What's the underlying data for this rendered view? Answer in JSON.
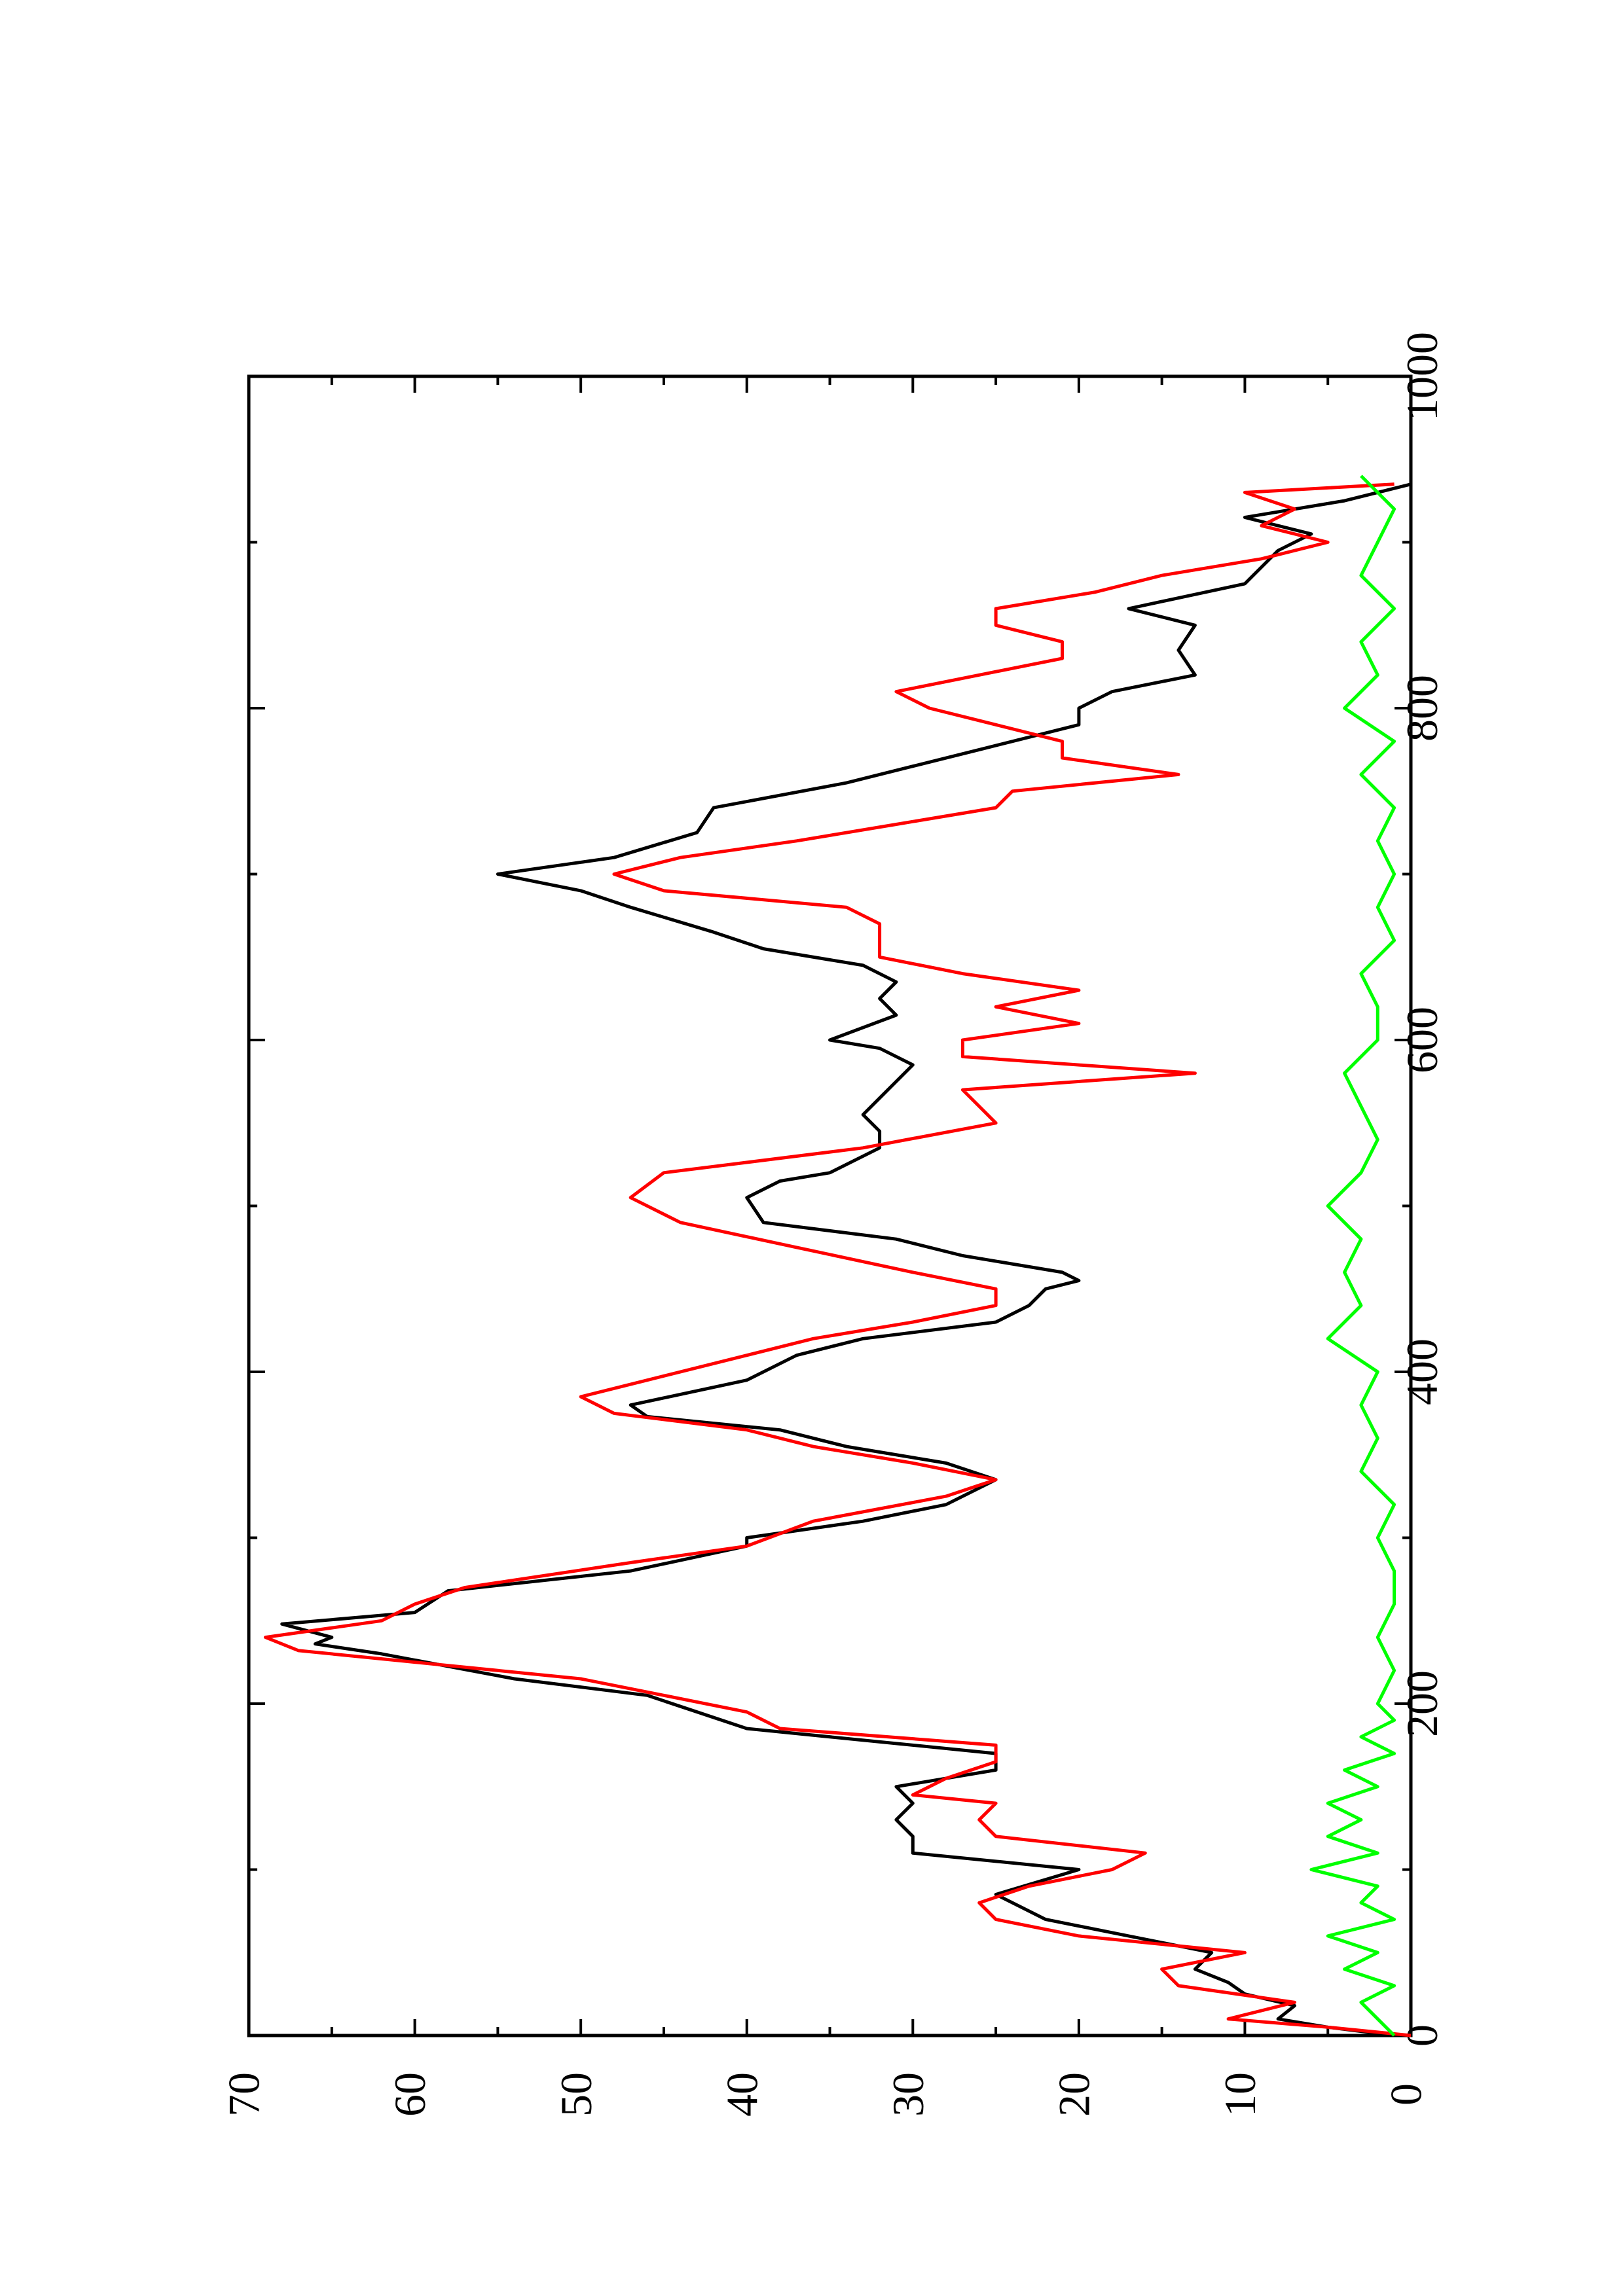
{
  "chart_data": {
    "type": "line",
    "orientation": "rotated 90 degrees clockwise (x axis vertical, y axis horizontal)",
    "title": "",
    "xlabel": "",
    "ylabel": "",
    "xlim": [
      0,
      1000
    ],
    "ylim": [
      0,
      70
    ],
    "x_ticks": [
      0,
      200,
      400,
      600,
      800,
      1000
    ],
    "y_ticks": [
      0,
      10,
      20,
      30,
      40,
      50,
      60,
      70
    ],
    "grid": false,
    "legend": "none",
    "series": [
      {
        "color": "#000000",
        "x": [
          0,
          5,
          10,
          18,
          25,
          32,
          40,
          50,
          60,
          70,
          85,
          100,
          110,
          120,
          130,
          140,
          150,
          160,
          170,
          185,
          205,
          215,
          230,
          236,
          240,
          248,
          255,
          268,
          280,
          295,
          300,
          310,
          320,
          335,
          345,
          355,
          365,
          373,
          380,
          395,
          410,
          420,
          430,
          440,
          450,
          455,
          460,
          470,
          480,
          490,
          505,
          515,
          520,
          535,
          545,
          555,
          565,
          575,
          585,
          595,
          600,
          615,
          625,
          635,
          645,
          655,
          665,
          680,
          690,
          700,
          710,
          725,
          740,
          755,
          765,
          775,
          790,
          800,
          810,
          820,
          835,
          850,
          860,
          875,
          885,
          895,
          905,
          915,
          925,
          935
        ],
        "y": [
          1,
          5,
          8,
          7,
          10,
          11,
          13,
          12,
          17,
          22,
          25,
          20,
          30,
          30,
          31,
          30,
          31,
          25,
          25,
          40,
          46,
          54,
          62,
          66,
          65,
          68,
          60,
          58,
          47,
          40,
          40,
          33,
          28,
          25,
          28,
          34,
          38,
          46,
          47,
          40,
          37,
          33,
          25,
          23,
          22,
          20,
          21,
          27,
          31,
          39,
          40,
          38,
          35,
          32,
          32,
          33,
          32,
          31,
          30,
          32,
          35,
          31,
          32,
          31,
          33,
          39,
          42,
          47,
          50,
          55,
          48,
          43,
          42,
          34,
          30,
          26,
          20,
          20,
          18,
          13,
          14,
          13,
          17,
          10,
          9,
          8,
          6,
          10,
          4,
          0
        ]
      },
      {
        "color": "#ff0000",
        "x": [
          0,
          5,
          10,
          20,
          30,
          40,
          50,
          60,
          70,
          80,
          90,
          100,
          110,
          120,
          130,
          140,
          145,
          155,
          165,
          175,
          185,
          195,
          205,
          215,
          225,
          232,
          240,
          250,
          260,
          270,
          285,
          295,
          310,
          325,
          335,
          345,
          355,
          365,
          375,
          385,
          395,
          410,
          420,
          430,
          440,
          450,
          460,
          475,
          490,
          505,
          520,
          535,
          550,
          560,
          570,
          580,
          590,
          600,
          610,
          620,
          630,
          640,
          650,
          660,
          670,
          680,
          690,
          700,
          710,
          720,
          730,
          740,
          750,
          760,
          770,
          780,
          790,
          800,
          810,
          820,
          830,
          840,
          850,
          860,
          870,
          880,
          890,
          900,
          910,
          920,
          930,
          935
        ],
        "y": [
          0,
          5,
          11,
          7,
          14,
          15,
          10,
          20,
          25,
          26,
          23,
          18,
          16,
          25,
          26,
          25,
          30,
          28,
          25,
          25,
          38,
          40,
          45,
          50,
          60,
          67,
          69,
          62,
          60,
          57,
          47,
          40,
          36,
          28,
          25,
          30,
          36,
          40,
          48,
          50,
          46,
          40,
          36,
          30,
          25,
          25,
          30,
          37,
          44,
          47,
          45,
          33,
          25,
          26,
          27,
          13,
          27,
          27,
          20,
          25,
          20,
          27,
          32,
          32,
          32,
          34,
          45,
          48,
          44,
          37,
          31,
          25,
          24,
          14,
          21,
          21,
          25,
          29,
          31,
          26,
          21,
          21,
          25,
          25,
          19,
          15,
          9,
          5,
          9,
          7,
          10,
          1
        ]
      },
      {
        "color": "#00ff00",
        "x": [
          0,
          10,
          20,
          30,
          40,
          50,
          60,
          70,
          80,
          90,
          100,
          110,
          120,
          130,
          140,
          150,
          160,
          170,
          180,
          190,
          200,
          220,
          240,
          260,
          280,
          300,
          320,
          340,
          360,
          380,
          400,
          420,
          440,
          460,
          480,
          500,
          520,
          540,
          560,
          580,
          600,
          620,
          640,
          660,
          680,
          700,
          720,
          740,
          760,
          780,
          800,
          820,
          840,
          860,
          880,
          900,
          920,
          940
        ],
        "y": [
          1,
          2,
          3,
          1,
          4,
          2,
          5,
          1,
          3,
          2,
          6,
          2,
          5,
          3,
          5,
          2,
          4,
          1,
          3,
          1,
          2,
          1,
          2,
          1,
          1,
          2,
          1,
          3,
          2,
          3,
          2,
          5,
          3,
          4,
          3,
          5,
          3,
          2,
          3,
          4,
          2,
          2,
          3,
          1,
          2,
          1,
          2,
          1,
          3,
          1,
          4,
          2,
          3,
          1,
          3,
          2,
          1,
          3
        ]
      }
    ]
  }
}
